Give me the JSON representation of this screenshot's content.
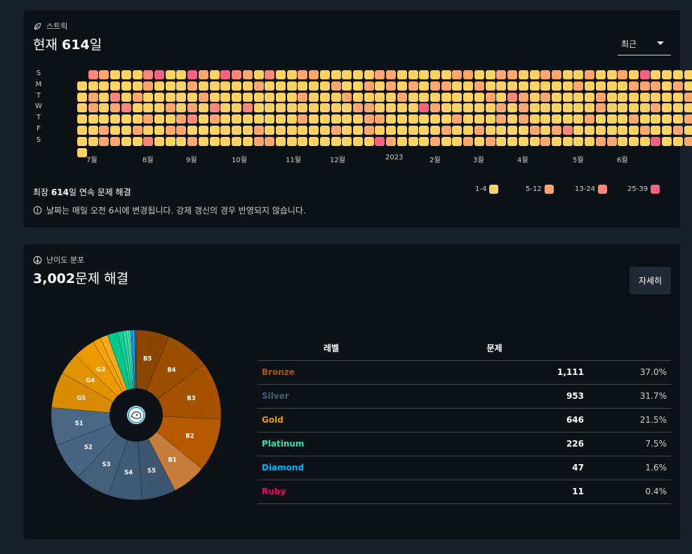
{
  "colors": {
    "background": "#172029",
    "card": "#0b1117",
    "streak_1_4": "#fdd265",
    "streak_5_12": "#fda76f",
    "streak_13_24": "#fa8779",
    "streak_25_39": "#f46283",
    "bronze": "#ad5600",
    "silver": "#435f7a",
    "gold": "#ec9a00",
    "platinum": "#27e2a4",
    "diamond": "#00b4fc",
    "ruby": "#ff0062"
  },
  "streak": {
    "section_label": "스트릭",
    "section_icon": "leaf-icon",
    "title_prefix": "현재 ",
    "title_number": "614",
    "title_suffix": "일",
    "range_select": "최근",
    "weekdays": [
      "S",
      "M",
      "T",
      "W",
      "T",
      "F",
      "S"
    ],
    "months": [
      "7월",
      "8월",
      "9월",
      "10월",
      "11월",
      "12월",
      "2023",
      "2월",
      "3월",
      "4월",
      "5월",
      "6월"
    ],
    "best_prefix": "최장 ",
    "best_number": "614",
    "best_suffix": "일 연속 문제 해결",
    "legend": [
      {
        "label": "1-4",
        "level": 1
      },
      {
        "label": "5-12",
        "level": 2
      },
      {
        "label": "13-24",
        "level": 3
      },
      {
        "label": "25-39",
        "level": 4
      }
    ],
    "note": "날짜는 매일 오전 6시에 변경됩니다. 강제 갱신의 경우 반영되지 않습니다.",
    "note_icon": "info-circle-icon",
    "weeks": [
      "1111111",
      "3122111",
      "2111122",
      "1132112",
      "1113111",
      "1121121",
      "3211213",
      "4111111",
      "1112121",
      "1111221",
      "4212312",
      "2121111",
      "1113211",
      "4111111",
      "3111111",
      "2113111",
      "1211122",
      "3111112",
      "1111111",
      "1111111",
      "2121211",
      "2111111",
      "1111111",
      "1211121",
      "1121111",
      "1112111",
      "1212221",
      "2111214",
      "2211112",
      "1121111",
      "1211111",
      "1114111",
      "1212112",
      "1211121",
      "2111211",
      "2111112",
      "1211121",
      "1121112",
      "2112211",
      "2131111",
      "1122211",
      "1111121",
      "2121112",
      "2111121",
      "1111131",
      "1211111",
      "2111211",
      "1122112",
      "1111112",
      "2111111",
      "1211211",
      "4211121",
      "1212114",
      "1111111",
      "1211121",
      "1121212",
      "1123",
      "11"
    ]
  },
  "distribution": {
    "section_label": "난이도 분포",
    "section_icon": "peace-icon",
    "title_number": "3,002",
    "title_suffix": "문제 해결",
    "detail_button": "자세히",
    "table_headers": [
      "레벨",
      "문제"
    ],
    "tiers": [
      {
        "name": "Bronze",
        "count": "1,111",
        "percent": "37.0%",
        "color": "#ad5600"
      },
      {
        "name": "Silver",
        "count": "953",
        "percent": "31.7%",
        "color": "#435f7a"
      },
      {
        "name": "Gold",
        "count": "646",
        "percent": "21.5%",
        "color": "#ec9a00"
      },
      {
        "name": "Platinum",
        "count": "226",
        "percent": "7.5%",
        "color": "#27e2a4"
      },
      {
        "name": "Diamond",
        "count": "47",
        "percent": "1.6%",
        "color": "#00b4fc"
      },
      {
        "name": "Ruby",
        "count": "11",
        "percent": "0.4%",
        "color": "#ff0062"
      }
    ],
    "chart_data": {
      "type": "pie",
      "slices": [
        {
          "label": "B5",
          "value": 97,
          "color": "#8a4500"
        },
        {
          "label": "B4",
          "value": 130,
          "color": "#9c4e00"
        },
        {
          "label": "B3",
          "value": 170,
          "color": "#a45200"
        },
        {
          "label": "B2",
          "value": 155,
          "color": "#b55a00"
        },
        {
          "label": "B1",
          "value": 100,
          "color": "#c77d3b"
        },
        {
          "label": "S5",
          "value": 100,
          "color": "#3c5570"
        },
        {
          "label": "S4",
          "value": 98,
          "color": "#3f5a76"
        },
        {
          "label": "S3",
          "value": 103,
          "color": "#435f7a"
        },
        {
          "label": "S2",
          "value": 111,
          "color": "#476582"
        },
        {
          "label": "S1",
          "value": 110,
          "color": "#4a6886"
        },
        {
          "label": "G5",
          "value": 105,
          "color": "#d88a00"
        },
        {
          "label": "G4",
          "value": 65,
          "color": "#e09200"
        },
        {
          "label": "G3",
          "value": 63,
          "color": "#ec9a00"
        },
        {
          "label": "",
          "value": 23,
          "color": "#f5a300"
        },
        {
          "label": "",
          "value": 23,
          "color": "#f7ab1a"
        },
        {
          "label": "",
          "value": 30,
          "color": "#00c98d"
        },
        {
          "label": "",
          "value": 15,
          "color": "#10d199"
        },
        {
          "label": "",
          "value": 10,
          "color": "#27e2a4"
        },
        {
          "label": "",
          "value": 7,
          "color": "#4ae8b3"
        },
        {
          "label": "",
          "value": 5,
          "color": "#6ff0c2"
        },
        {
          "label": "",
          "value": 5,
          "color": "#00a6ee"
        },
        {
          "label": "",
          "value": 7,
          "color": "#00b4fc"
        },
        {
          "label": "",
          "value": 2,
          "color": "#2cc3ff"
        },
        {
          "label": "",
          "value": 3,
          "color": "#ff0062"
        }
      ],
      "center_icon": "solvedac-logo-icon"
    }
  }
}
